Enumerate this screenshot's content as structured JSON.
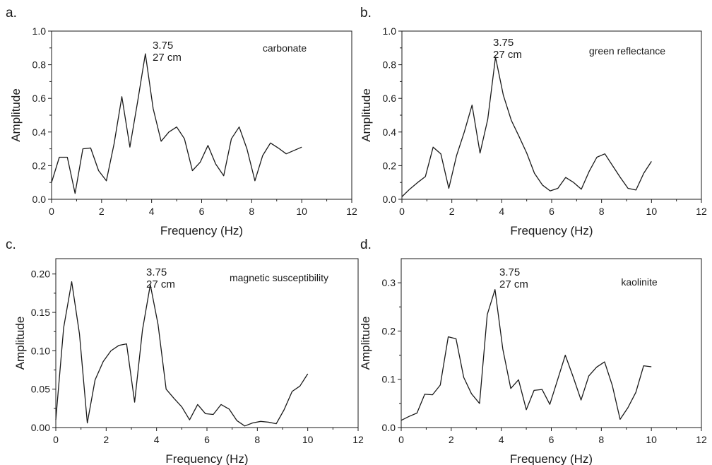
{
  "chart_data": [
    {
      "type": "line",
      "panel_label": "a.",
      "series_label": "carbonate",
      "xlabel": "Frequency (Hz)",
      "ylabel": "Amplitude",
      "xlim": [
        0,
        12
      ],
      "ylim": [
        0,
        1.0
      ],
      "xticks": [
        "0",
        "2",
        "4",
        "6",
        "8",
        "10",
        "12"
      ],
      "yticks": [
        "0.0",
        "0.2",
        "0.4",
        "0.6",
        "0.8",
        "1.0"
      ],
      "annotation": [
        "3.75",
        "27 cm"
      ],
      "grid": false,
      "x": [
        0.0,
        0.31,
        0.63,
        0.94,
        1.25,
        1.56,
        1.88,
        2.19,
        2.5,
        2.81,
        3.13,
        3.44,
        3.75,
        4.06,
        4.38,
        4.69,
        5.0,
        5.31,
        5.63,
        5.94,
        6.25,
        6.56,
        6.88,
        7.19,
        7.5,
        7.81,
        8.13,
        8.44,
        8.75,
        9.06,
        9.38,
        10.0
      ],
      "y": [
        0.1,
        0.25,
        0.25,
        0.035,
        0.3,
        0.305,
        0.17,
        0.11,
        0.33,
        0.61,
        0.31,
        0.58,
        0.865,
        0.54,
        0.345,
        0.4,
        0.43,
        0.36,
        0.17,
        0.22,
        0.32,
        0.21,
        0.14,
        0.36,
        0.43,
        0.3,
        0.11,
        0.26,
        0.335,
        0.305,
        0.27,
        0.31
      ]
    },
    {
      "type": "line",
      "panel_label": "b.",
      "series_label": "green reflectance",
      "xlabel": "Frequency (Hz)",
      "ylabel": "Amplitude",
      "xlim": [
        0,
        12
      ],
      "ylim": [
        0,
        1.0
      ],
      "xticks": [
        "0",
        "2",
        "4",
        "6",
        "8",
        "10",
        "12"
      ],
      "yticks": [
        "0.0",
        "0.2",
        "0.4",
        "0.6",
        "0.8",
        "1.0"
      ],
      "annotation": [
        "3.75",
        "27 cm"
      ],
      "grid": false,
      "x": [
        0.0,
        0.31,
        0.63,
        0.94,
        1.25,
        1.56,
        1.88,
        2.19,
        2.5,
        2.81,
        3.13,
        3.44,
        3.75,
        4.06,
        4.38,
        4.69,
        5.0,
        5.31,
        5.63,
        5.94,
        6.25,
        6.56,
        6.88,
        7.19,
        7.5,
        7.81,
        8.13,
        8.44,
        8.75,
        9.06,
        9.38,
        9.69,
        10.0
      ],
      "y": [
        0.015,
        0.06,
        0.1,
        0.135,
        0.31,
        0.27,
        0.065,
        0.26,
        0.4,
        0.56,
        0.275,
        0.475,
        0.845,
        0.62,
        0.47,
        0.375,
        0.275,
        0.155,
        0.085,
        0.05,
        0.065,
        0.13,
        0.1,
        0.06,
        0.165,
        0.25,
        0.27,
        0.2,
        0.13,
        0.065,
        0.055,
        0.155,
        0.225
      ]
    },
    {
      "type": "line",
      "panel_label": "c.",
      "series_label": "magnetic susceptibility",
      "xlabel": "Frequency (Hz)",
      "ylabel": "Amplitude",
      "xlim": [
        0,
        12
      ],
      "ylim": [
        0,
        0.22
      ],
      "xticks": [
        "0",
        "2",
        "4",
        "6",
        "8",
        "10",
        "12"
      ],
      "yticks": [
        "0.00",
        "0.05",
        "0.10",
        "0.15",
        "0.20"
      ],
      "annotation": [
        "3.75",
        "27 cm"
      ],
      "grid": false,
      "x": [
        0.0,
        0.31,
        0.63,
        0.94,
        1.25,
        1.56,
        1.88,
        2.19,
        2.5,
        2.81,
        3.13,
        3.44,
        3.75,
        4.06,
        4.38,
        4.69,
        5.0,
        5.31,
        5.63,
        5.94,
        6.25,
        6.56,
        6.88,
        7.19,
        7.5,
        7.81,
        8.13,
        8.44,
        8.75,
        9.06,
        9.38,
        9.69,
        10.0
      ],
      "y": [
        0.01,
        0.13,
        0.19,
        0.122,
        0.006,
        0.062,
        0.086,
        0.1,
        0.107,
        0.109,
        0.033,
        0.127,
        0.186,
        0.134,
        0.05,
        0.038,
        0.027,
        0.01,
        0.03,
        0.018,
        0.017,
        0.03,
        0.024,
        0.009,
        0.002,
        0.006,
        0.008,
        0.007,
        0.005,
        0.023,
        0.047,
        0.054,
        0.07
      ]
    },
    {
      "type": "line",
      "panel_label": "d.",
      "series_label": "kaolinite",
      "xlabel": "Frequency (Hz)",
      "ylabel": "Amplitude",
      "xlim": [
        0,
        12
      ],
      "ylim": [
        0,
        0.35
      ],
      "xticks": [
        "0",
        "2",
        "4",
        "6",
        "8",
        "10",
        "12"
      ],
      "yticks": [
        "0.0",
        "0.1",
        "0.2",
        "0.3"
      ],
      "annotation": [
        "3.75",
        "27 cm"
      ],
      "grid": false,
      "x": [
        0.0,
        0.31,
        0.63,
        0.94,
        1.25,
        1.56,
        1.88,
        2.19,
        2.5,
        2.81,
        3.13,
        3.44,
        3.75,
        4.06,
        4.38,
        4.69,
        5.0,
        5.31,
        5.63,
        5.94,
        6.25,
        6.56,
        6.88,
        7.19,
        7.5,
        7.81,
        8.13,
        8.44,
        8.75,
        9.06,
        9.38,
        9.69,
        10.0
      ],
      "y": [
        0.015,
        0.023,
        0.03,
        0.069,
        0.068,
        0.088,
        0.188,
        0.184,
        0.104,
        0.07,
        0.05,
        0.234,
        0.286,
        0.163,
        0.081,
        0.099,
        0.037,
        0.077,
        0.079,
        0.048,
        0.099,
        0.15,
        0.104,
        0.057,
        0.107,
        0.125,
        0.136,
        0.087,
        0.017,
        0.041,
        0.073,
        0.128,
        0.126
      ]
    }
  ]
}
